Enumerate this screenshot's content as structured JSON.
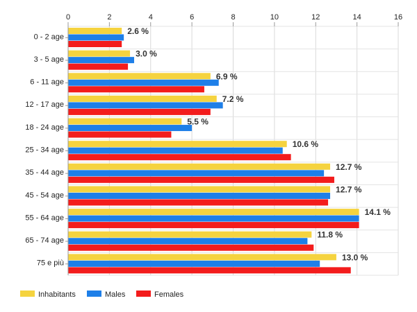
{
  "chart_data": {
    "type": "bar",
    "orientation": "horizontal",
    "categories": [
      "0 - 2 age",
      "3 - 5 age",
      "6 - 11 age",
      "12 - 17 age",
      "18 - 24 age",
      "25 - 34 age",
      "35 - 44 age",
      "45 - 54 age",
      "55 - 64 age",
      "65 - 74 age",
      "75 e più"
    ],
    "series": [
      {
        "name": "Inhabitants",
        "color": "#f5d33f",
        "values": [
          2.6,
          3.0,
          6.9,
          7.2,
          5.5,
          10.6,
          12.7,
          12.7,
          14.1,
          11.8,
          13.0
        ]
      },
      {
        "name": "Males",
        "color": "#1e7fe8",
        "values": [
          2.7,
          3.2,
          7.3,
          7.5,
          6.0,
          10.4,
          12.4,
          12.7,
          14.1,
          11.6,
          12.2
        ]
      },
      {
        "name": "Females",
        "color": "#f31c1c",
        "values": [
          2.6,
          2.9,
          6.6,
          6.9,
          5.0,
          10.8,
          12.9,
          12.6,
          14.1,
          11.9,
          13.7
        ]
      }
    ],
    "data_labels": [
      "2.6 %",
      "3.0 %",
      "6.9 %",
      "7.2 %",
      "5.5 %",
      "10.6 %",
      "12.7 %",
      "12.7 %",
      "14.1 %",
      "11.8 %",
      "13.0 %"
    ],
    "xlim": [
      0,
      16
    ],
    "x_ticks": [
      "0",
      "2",
      "4",
      "6",
      "8",
      "10",
      "12",
      "14",
      "16"
    ],
    "x_axis_position": "top",
    "grid": true,
    "legend_position": "bottom-left",
    "title": "",
    "xlabel": "",
    "ylabel": ""
  }
}
